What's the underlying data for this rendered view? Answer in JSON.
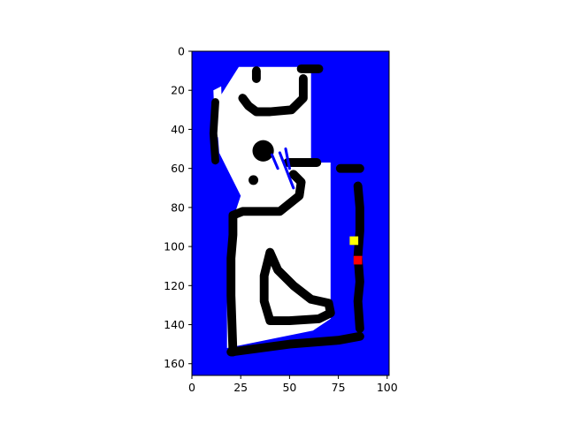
{
  "chart_data": {
    "type": "heatmap",
    "title": "",
    "xlabel": "",
    "ylabel": "",
    "xlim": [
      0,
      101
    ],
    "ylim": [
      166,
      0
    ],
    "x_ticks": [
      "0",
      "25",
      "50",
      "75",
      "100"
    ],
    "y_ticks": [
      "0",
      "20",
      "40",
      "60",
      "80",
      "100",
      "120",
      "140",
      "160"
    ],
    "grid": false,
    "legend": "none",
    "colors": {
      "unknown": "#0000ff",
      "free": "#ffffff",
      "obstacle": "#000000",
      "marker_yellow": "#ffff00",
      "marker_red": "#ff0000"
    },
    "free_region": [
      [
        24,
        8
      ],
      [
        61,
        8
      ],
      [
        61,
        57
      ],
      [
        71,
        57
      ],
      [
        71,
        114
      ],
      [
        71,
        137
      ],
      [
        62,
        143
      ],
      [
        18,
        152
      ],
      [
        18,
        118
      ],
      [
        19,
        92
      ],
      [
        25,
        74
      ],
      [
        14,
        52
      ],
      [
        12,
        27
      ]
    ],
    "free_slivers": [
      [
        [
          11,
          20
        ],
        [
          15,
          18
        ],
        [
          16,
          44
        ],
        [
          12,
          44
        ]
      ],
      [
        [
          25,
          14
        ],
        [
          31,
          14
        ],
        [
          31,
          32
        ],
        [
          25,
          32
        ]
      ]
    ],
    "obstacle_walls": [
      {
        "w": 4.5,
        "points": [
          [
            57,
            14
          ],
          [
            57,
            24
          ],
          [
            51,
            30
          ],
          [
            40,
            31
          ],
          [
            33,
            31
          ],
          [
            29,
            28
          ],
          [
            26,
            24
          ]
        ]
      },
      {
        "w": 4.5,
        "points": [
          [
            56,
            9
          ],
          [
            65,
            9
          ]
        ]
      },
      {
        "w": 4.5,
        "points": [
          [
            33,
            10
          ],
          [
            33,
            14
          ]
        ]
      },
      {
        "w": 4.0,
        "points": [
          [
            12,
            26
          ],
          [
            11,
            42
          ],
          [
            12,
            56
          ]
        ]
      },
      {
        "w": 4.5,
        "points": [
          [
            49,
            57
          ],
          [
            64,
            57
          ]
        ]
      },
      {
        "w": 4.5,
        "points": [
          [
            52,
            63
          ],
          [
            56,
            67
          ],
          [
            55,
            74
          ],
          [
            45,
            82
          ],
          [
            35,
            82
          ],
          [
            26,
            82
          ],
          [
            21,
            84
          ],
          [
            21,
            94
          ],
          [
            20,
            106
          ],
          [
            20,
            125
          ],
          [
            21,
            154
          ]
        ]
      },
      {
        "w": 4.5,
        "points": [
          [
            76,
            60
          ],
          [
            86,
            60
          ]
        ]
      },
      {
        "w": 4.5,
        "points": [
          [
            85,
            69
          ],
          [
            86,
            80
          ],
          [
            86,
            92
          ],
          [
            85,
            105
          ],
          [
            86,
            118
          ],
          [
            85,
            128
          ],
          [
            86,
            142
          ]
        ]
      },
      {
        "w": 4.5,
        "points": [
          [
            86,
            146
          ],
          [
            75,
            148
          ],
          [
            50,
            150
          ],
          [
            20,
            154
          ]
        ]
      },
      {
        "w": 4.5,
        "points": [
          [
            40,
            103
          ],
          [
            44,
            112
          ],
          [
            52,
            120
          ],
          [
            61,
            127
          ],
          [
            70,
            129
          ],
          [
            71,
            134
          ],
          [
            65,
            137
          ],
          [
            50,
            138
          ],
          [
            40,
            138
          ],
          [
            37,
            128
          ],
          [
            37,
            115
          ],
          [
            40,
            103
          ]
        ]
      }
    ],
    "obstacle_blobs": [
      {
        "x": 36.5,
        "y": 51,
        "r": 5.5
      },
      {
        "x": 31.5,
        "y": 66,
        "r": 2.5
      }
    ],
    "unknown_streaks": [
      [
        [
          45,
          52
        ],
        [
          52,
          70
        ]
      ],
      [
        [
          41,
          53
        ],
        [
          44,
          60
        ]
      ],
      [
        [
          48,
          50
        ],
        [
          50,
          60
        ]
      ]
    ],
    "markers": [
      {
        "color": "yellow",
        "x": 83,
        "y": 97
      },
      {
        "color": "red",
        "x": 85,
        "y": 107
      }
    ]
  }
}
